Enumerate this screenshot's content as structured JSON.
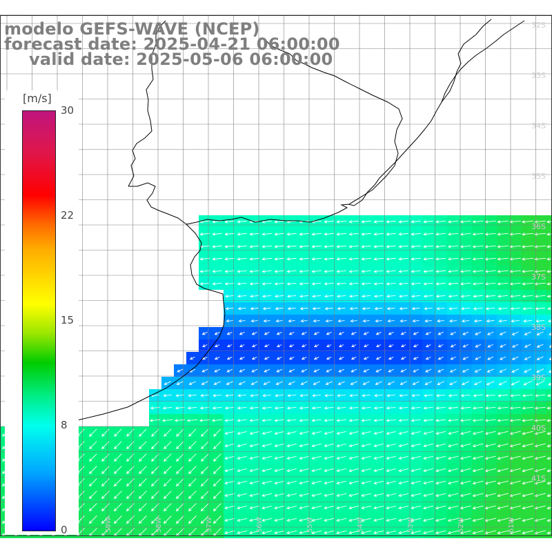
{
  "title": {
    "line1": "modelo GEFS-WAVE (NCEP)",
    "line2": "forecast date: 2025-04-21 06:00:00",
    "line3": "valid date: 2025-05-06 06:00:00"
  },
  "colorbar": {
    "unit": "[m/s]",
    "ticks": [
      {
        "label": "30",
        "value": 30
      },
      {
        "label": "22",
        "value": 22
      },
      {
        "label": "15",
        "value": 15
      },
      {
        "label": "8",
        "value": 8
      },
      {
        "label": "0",
        "value": 0
      }
    ],
    "min": 0,
    "max": 30
  },
  "map": {
    "lat_labels": [
      "32S",
      "33S",
      "34S",
      "35S",
      "36S",
      "37S",
      "38S",
      "39S",
      "40S",
      "41S"
    ],
    "lon_labels": [
      "61W",
      "60W",
      "59W",
      "58W",
      "57W",
      "56W",
      "55W",
      "54W",
      "53W",
      "52W",
      "51W"
    ],
    "colors": {
      "land": "#ffffff",
      "coast": "#000000",
      "grid": "#808080",
      "arrows": "#ffffff",
      "title": "#7f7f7f"
    }
  }
}
